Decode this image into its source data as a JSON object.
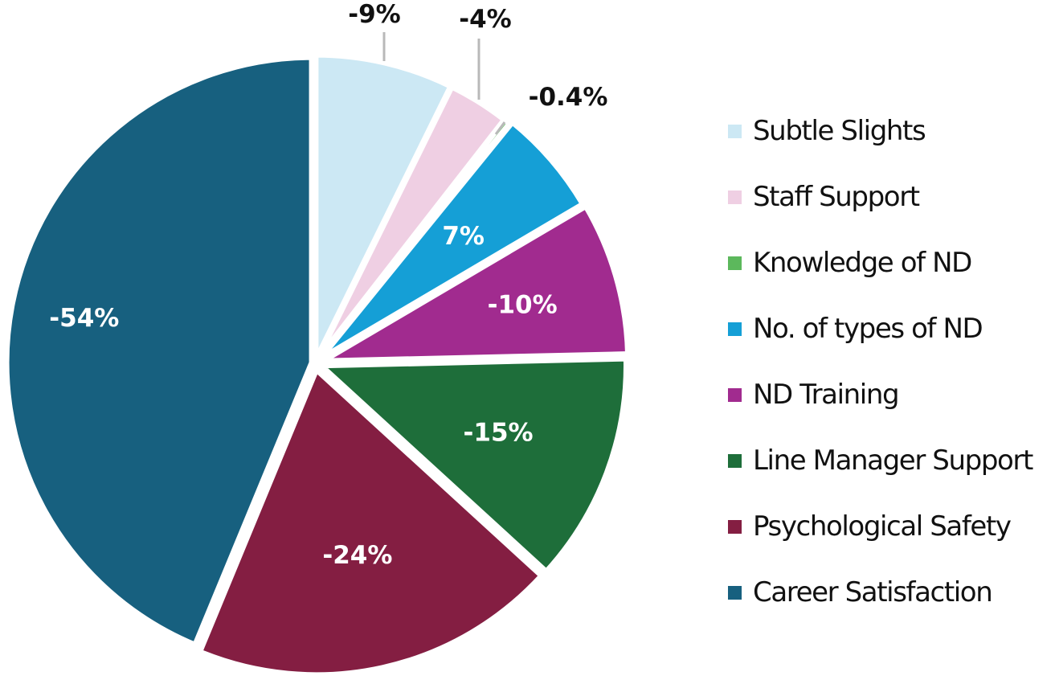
{
  "chart_data": {
    "type": "pie",
    "title": "",
    "legend_position": "right",
    "start_angle_deg": 0,
    "direction": "clockwise",
    "slices": [
      {
        "name": "Subtle Slights",
        "value": -9,
        "label": "-9%",
        "color": "#cce8f4",
        "label_position": "outside"
      },
      {
        "name": "Staff Support",
        "value": -4,
        "label": "-4%",
        "color": "#efcfe3",
        "label_position": "outside"
      },
      {
        "name": "Knowledge of ND",
        "value": -0.4,
        "label": "-0.4%",
        "color": "#5cb85c",
        "label_position": "outside"
      },
      {
        "name": "No. of types of ND",
        "value": 7,
        "label": "7%",
        "color": "#159fd6",
        "label_position": "inside"
      },
      {
        "name": "ND Training",
        "value": -10,
        "label": "-10%",
        "color": "#a12b8f",
        "label_position": "inside"
      },
      {
        "name": "Line Manager Support",
        "value": -15,
        "label": "-15%",
        "color": "#1e6e3a",
        "label_position": "inside"
      },
      {
        "name": "Psychological Safety",
        "value": -24,
        "label": "-24%",
        "color": "#841e42",
        "label_position": "inside"
      },
      {
        "name": "Career Satisfaction",
        "value": -54,
        "label": "-54%",
        "color": "#17607f",
        "label_position": "inside"
      }
    ],
    "categories": [
      "Subtle Slights",
      "Staff Support",
      "Knowledge of ND",
      "No. of types of ND",
      "ND Training",
      "Line Manager Support",
      "Psychological Safety",
      "Career Satisfaction"
    ],
    "values": [
      -9,
      -4,
      -0.4,
      7,
      -10,
      -15,
      -24,
      -54
    ]
  },
  "legend": {
    "items": [
      {
        "label": "Subtle Slights",
        "color": "#cce8f4"
      },
      {
        "label": "Staff Support",
        "color": "#efcfe3"
      },
      {
        "label": "Knowledge of ND",
        "color": "#5cb85c"
      },
      {
        "label": "No. of types of ND",
        "color": "#159fd6"
      },
      {
        "label": "ND Training",
        "color": "#a12b8f"
      },
      {
        "label": "Line Manager Support",
        "color": "#1e6e3a"
      },
      {
        "label": "Psychological Safety",
        "color": "#841e42"
      },
      {
        "label": "Career Satisfaction",
        "color": "#17607f"
      }
    ]
  }
}
